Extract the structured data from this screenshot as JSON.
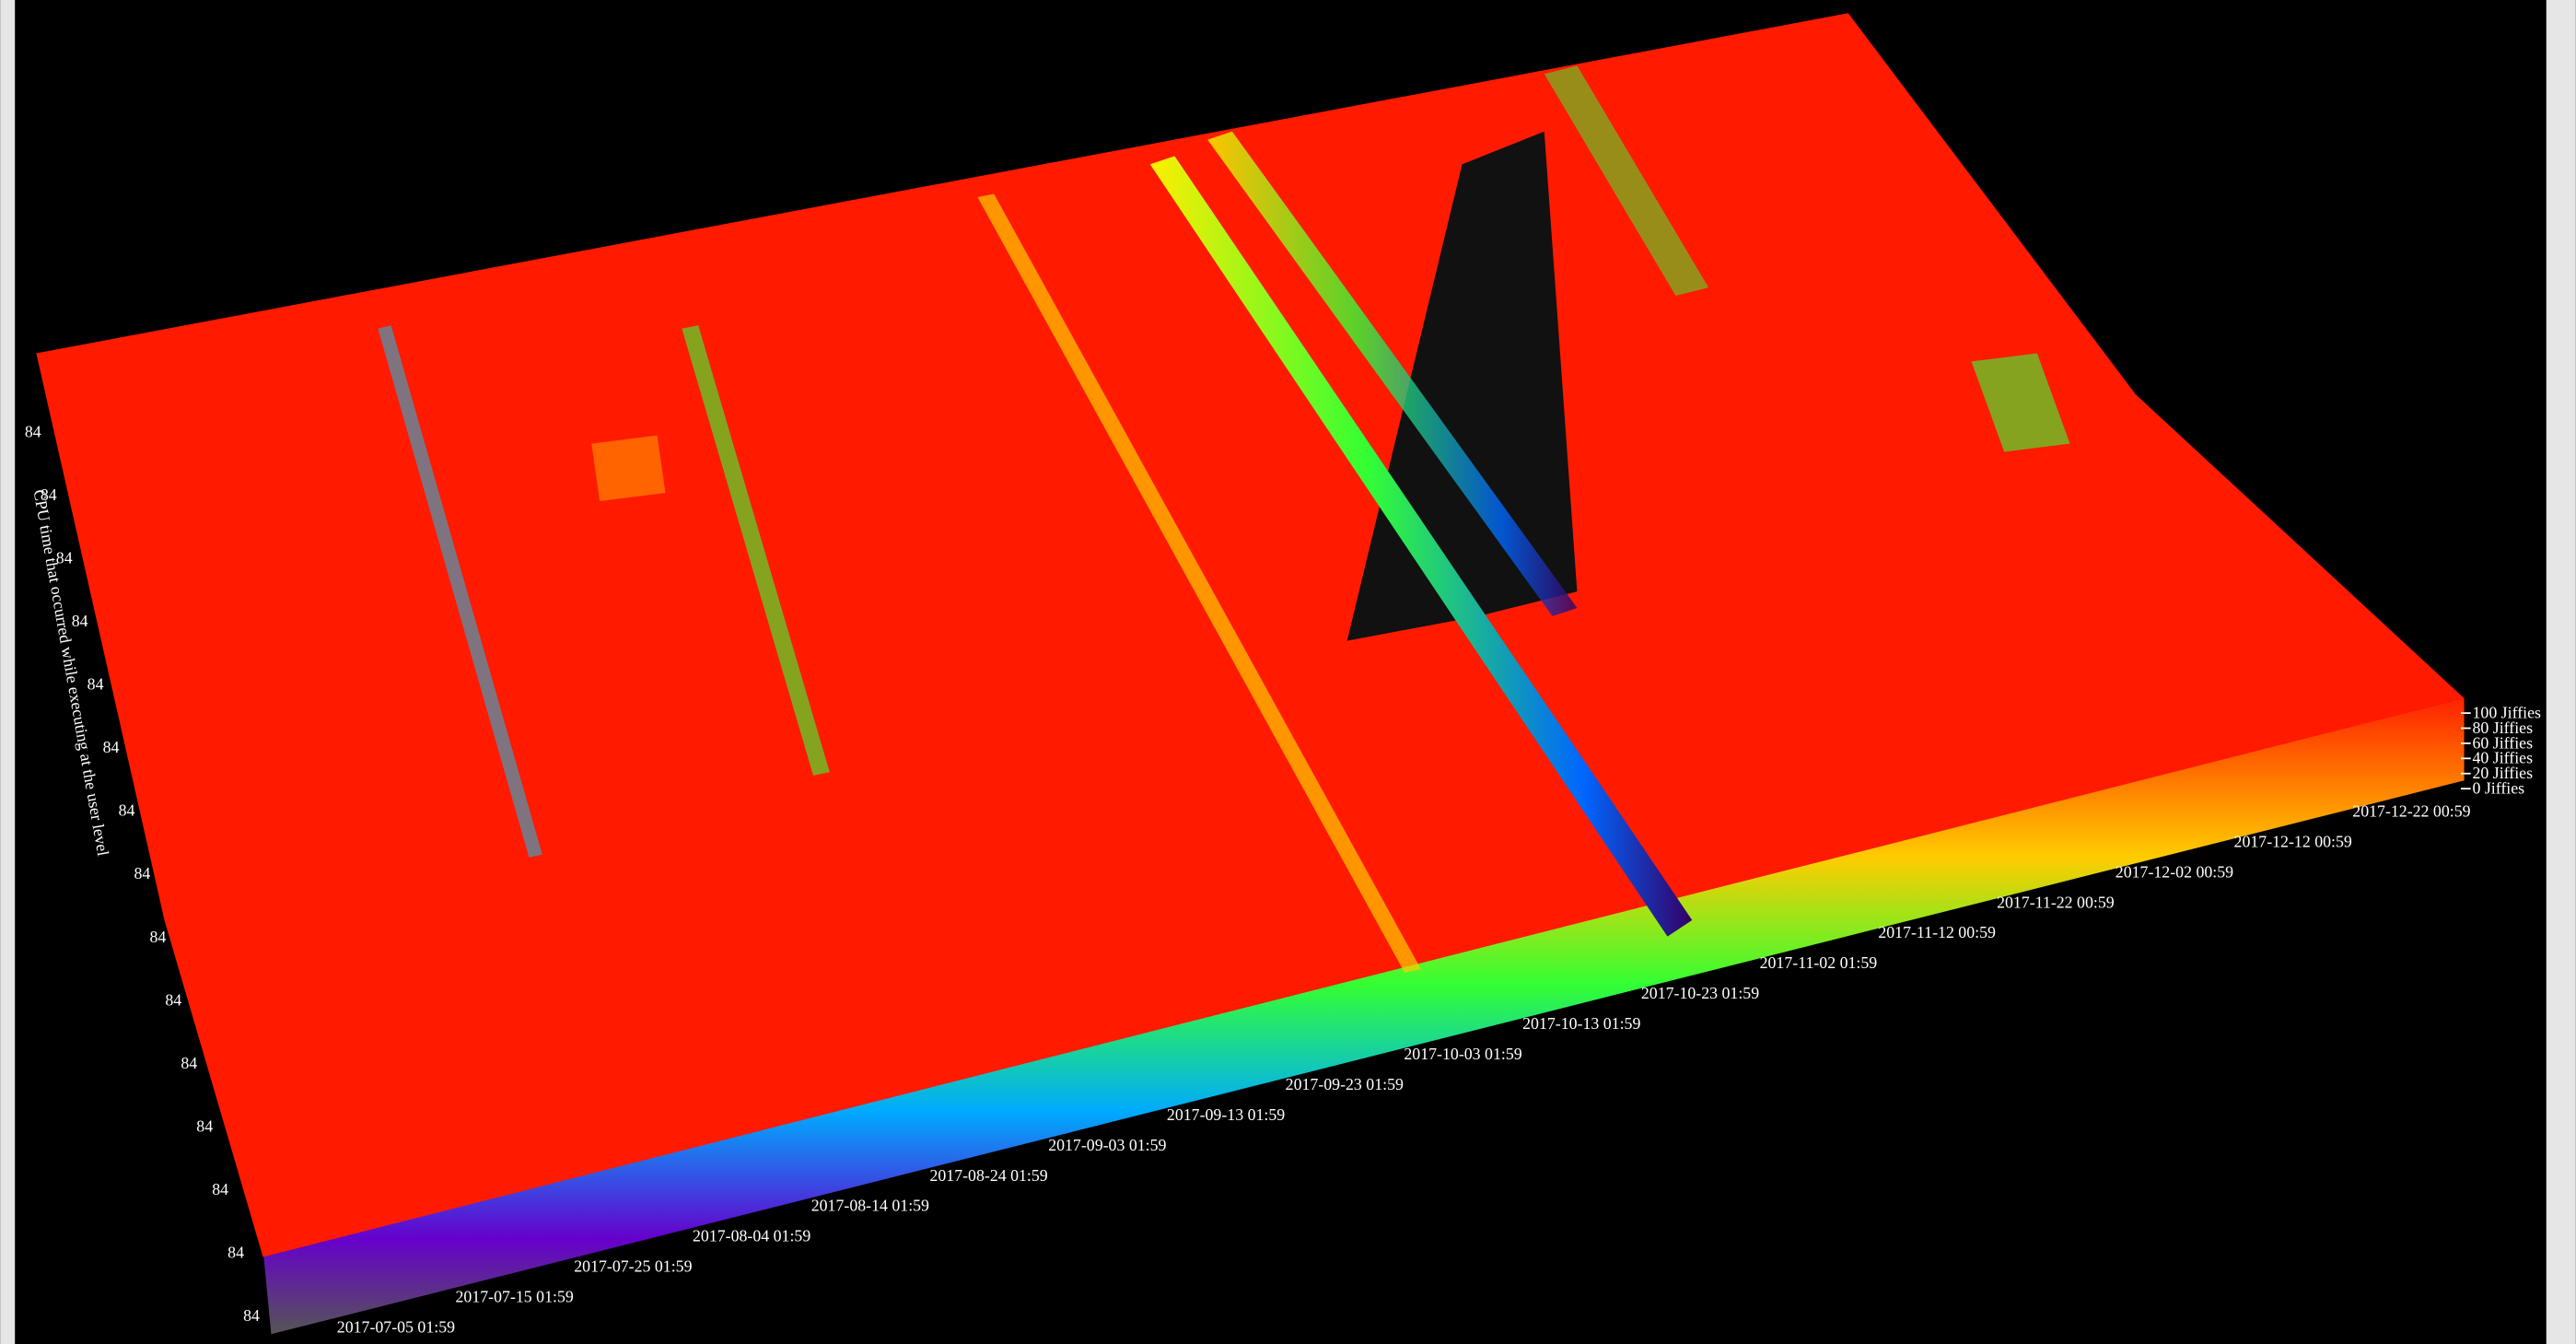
{
  "chart_data": {
    "type": "surface3d",
    "z_label": "CPU time that occurred while executing at the user level",
    "y_tick_labels": [
      "84",
      "84",
      "84",
      "84",
      "84",
      "84",
      "84",
      "84",
      "84",
      "84",
      "84",
      "84",
      "84",
      "84",
      "84"
    ],
    "x_tick_labels": [
      "2017-07-05 01:59",
      "2017-07-15 01:59",
      "2017-07-25 01:59",
      "2017-08-04 01:59",
      "2017-08-14 01:59",
      "2017-08-24 01:59",
      "2017-09-03 01:59",
      "2017-09-13 01:59",
      "2017-09-23 01:59",
      "2017-10-03 01:59",
      "2017-10-13 01:59",
      "2017-10-23 01:59",
      "2017-11-02 01:59",
      "2017-11-12 00:59",
      "2017-11-22 00:59",
      "2017-12-02 00:59",
      "2017-12-12 00:59",
      "2017-12-22 00:59"
    ],
    "zlim": [
      0,
      100
    ],
    "zticks": [
      {
        "value": 100,
        "label": "100 Jiffies"
      },
      {
        "value": 80,
        "label": "80 Jiffies"
      },
      {
        "value": 60,
        "label": "60 Jiffies"
      },
      {
        "value": 40,
        "label": "40 Jiffies"
      },
      {
        "value": 20,
        "label": "20 Jiffies"
      },
      {
        "value": 0,
        "label": "0 Jiffies"
      }
    ]
  }
}
